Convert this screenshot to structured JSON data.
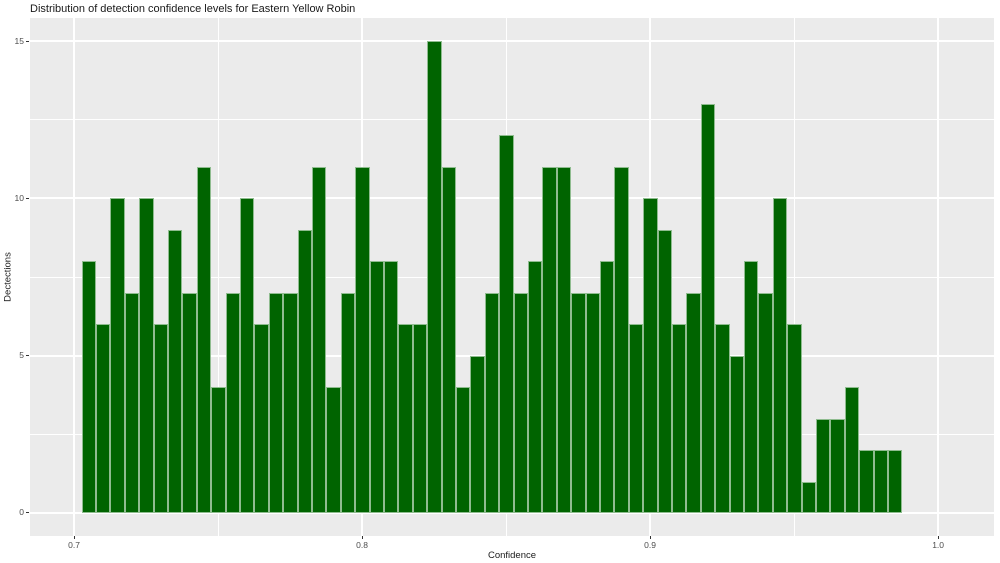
{
  "title": "Distribution of detection confidence levels for Eastern Yellow Robin",
  "chart_data": {
    "type": "bar",
    "subtype": "histogram",
    "title": "Distribution of detection confidence levels for Eastern Yellow Robin",
    "xlabel": "Confidence",
    "ylabel": "Dectections",
    "bin_start": 0.7026,
    "bin_width": 0.005,
    "values": [
      8,
      6,
      10,
      7,
      10,
      6,
      9,
      7,
      11,
      4,
      7,
      10,
      6,
      7,
      7,
      9,
      11,
      4,
      7,
      11,
      8,
      8,
      6,
      6,
      15,
      11,
      4,
      5,
      7,
      12,
      7,
      8,
      11,
      11,
      7,
      7,
      8,
      11,
      6,
      10,
      9,
      6,
      7,
      13,
      6,
      5,
      8,
      7,
      10,
      6,
      1,
      3,
      3,
      4,
      2,
      2,
      2
    ],
    "x_ticks": [
      0.7,
      0.8,
      0.9,
      1.0
    ],
    "x_tick_labels": [
      "0.7",
      "0.8",
      "0.9",
      "1.0"
    ],
    "y_ticks": [
      0,
      5,
      10,
      15
    ],
    "y_tick_labels": [
      "0",
      "5",
      "10",
      "15"
    ],
    "x_minor_ticks": [
      0.75,
      0.85,
      0.95
    ],
    "y_minor_ticks": [
      2.5,
      7.5,
      12.5
    ],
    "xlim": [
      0.6847,
      1.0194
    ],
    "ylim": [
      -0.731,
      15.731
    ],
    "grid": "major-and-minor",
    "legend": "none",
    "colors": {
      "bar_fill": "#006400",
      "bar_border": "#8fbc8f",
      "panel_background": "#ebebeb",
      "gridline": "#ffffff",
      "tick_mark": "#333333",
      "tick_label": "#4d4d4d",
      "text": "#1a1a1a"
    }
  }
}
